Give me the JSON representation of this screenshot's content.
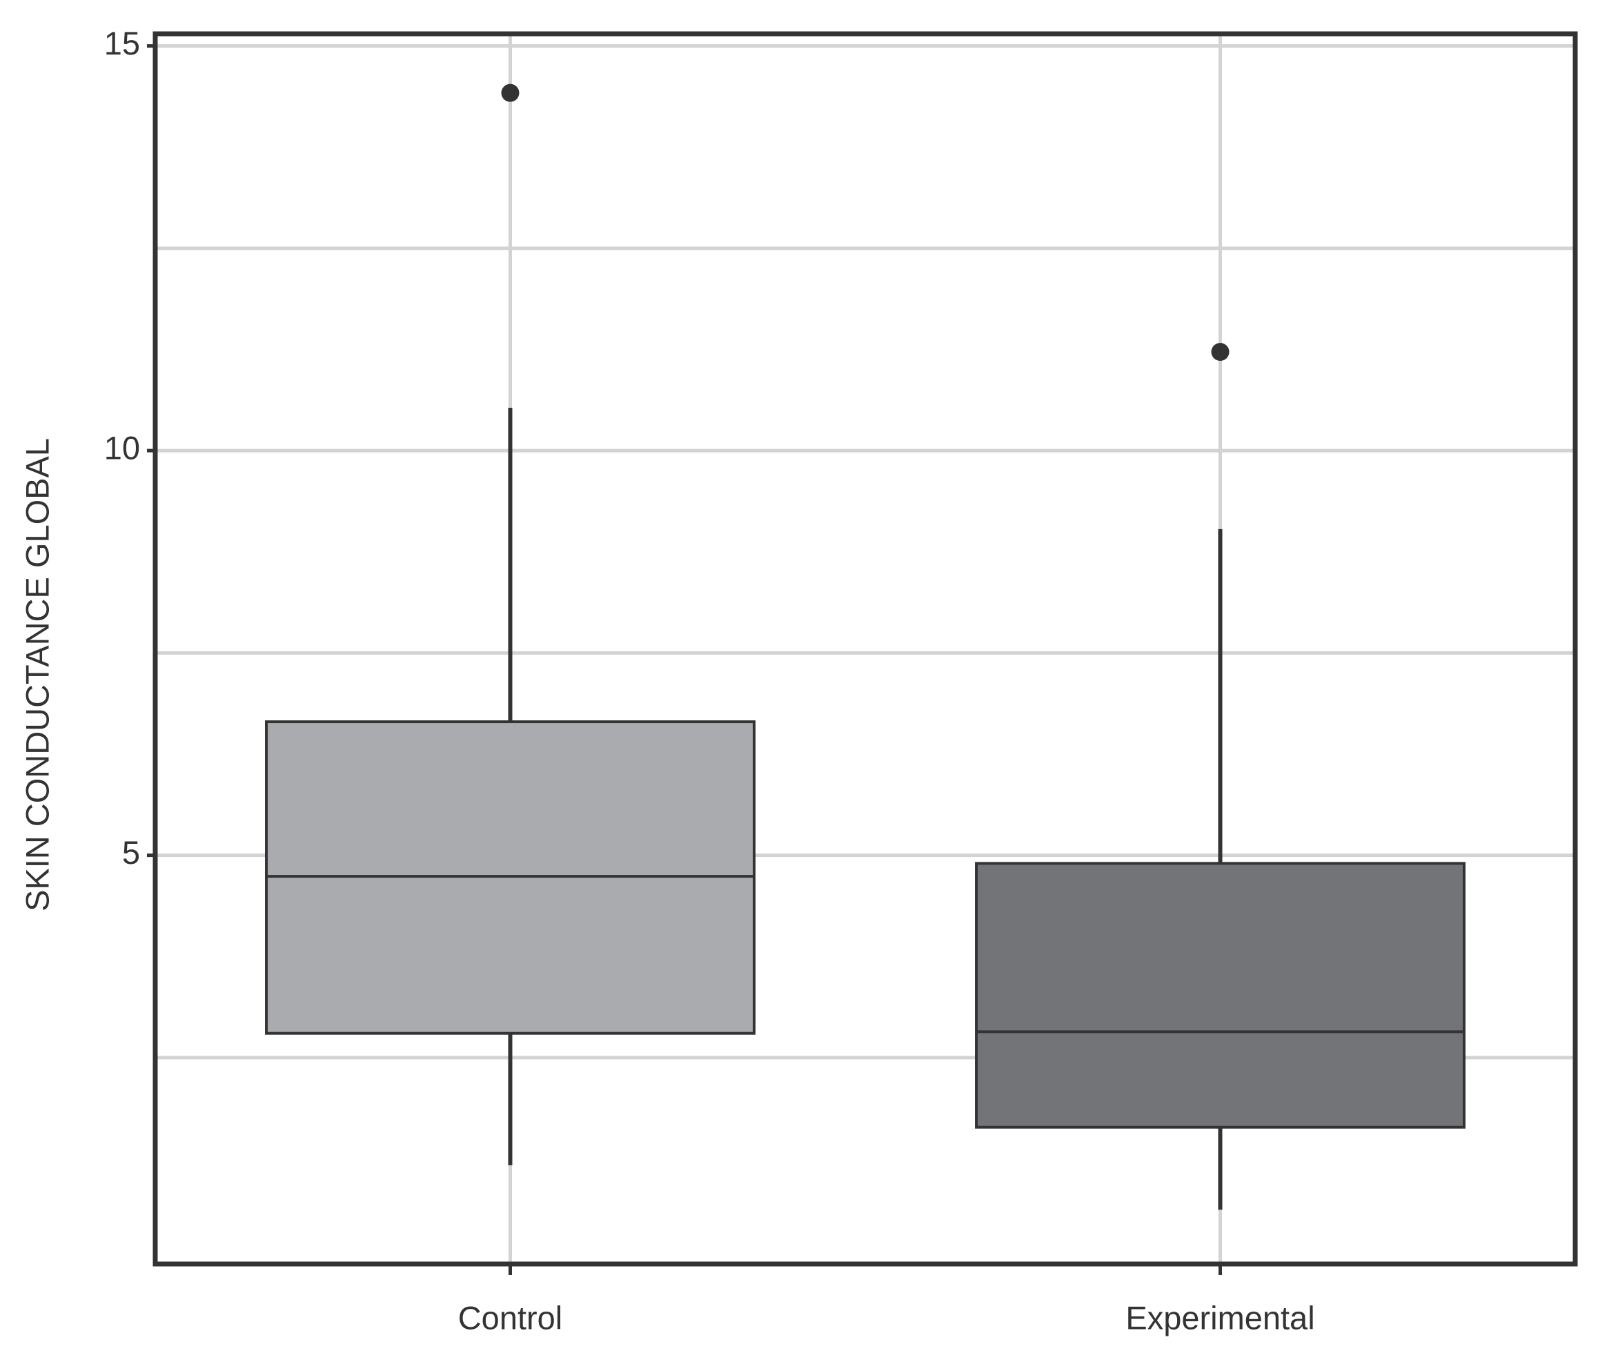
{
  "chart_data": {
    "type": "box",
    "y_label": "SKIN CONDUCTANCE GLOBAL",
    "categories": [
      "Control",
      "Experimental"
    ],
    "colors": [
      "#aaabae",
      "#737478"
    ],
    "boxes": [
      {
        "whislo": 1.17,
        "q1": 2.8,
        "med": 4.74,
        "q3": 6.65,
        "whishi": 10.53,
        "fliers": [
          14.42
        ]
      },
      {
        "whislo": 0.62,
        "q1": 1.64,
        "med": 2.82,
        "q3": 4.9,
        "whishi": 9.03,
        "fliers": [
          11.22
        ]
      }
    ],
    "ylim": [
      -0.05,
      15.15
    ],
    "yticks": [
      5,
      10,
      15
    ],
    "minor_yticks": [
      2.5,
      7.5,
      12.5
    ],
    "grid": true
  }
}
